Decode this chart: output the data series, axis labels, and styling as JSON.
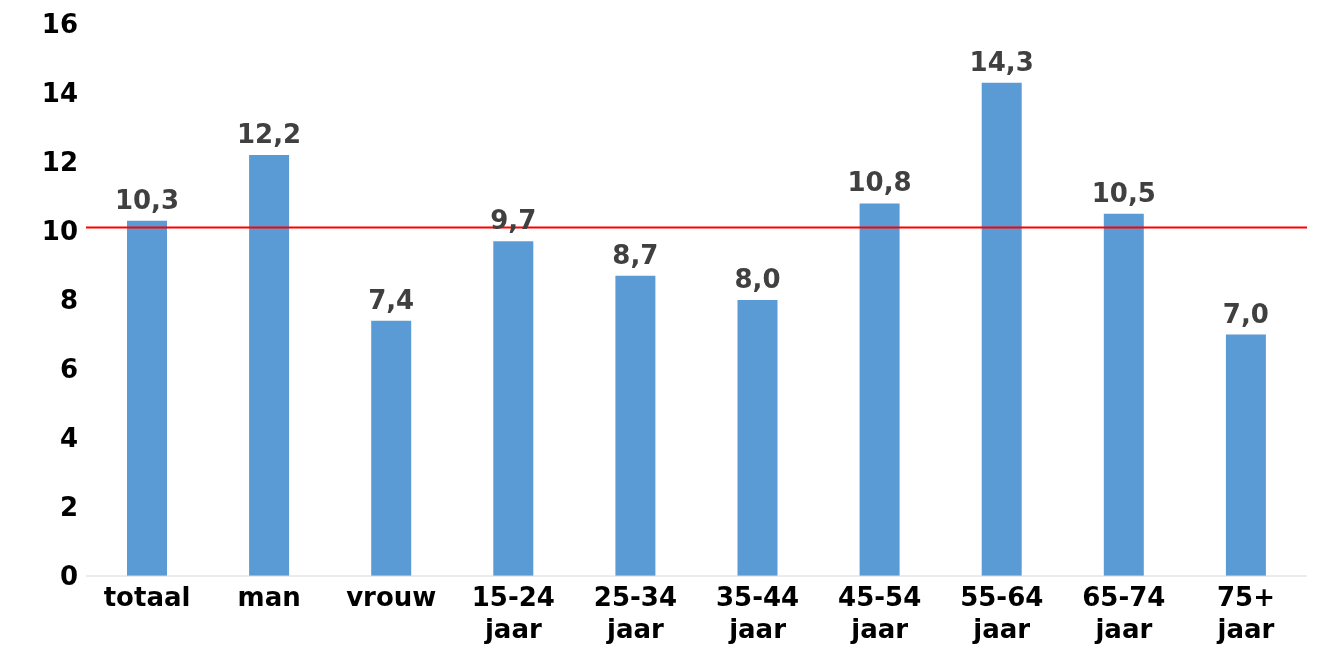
{
  "chart_data": {
    "type": "bar",
    "categories": [
      "totaal",
      "man",
      "vrouw",
      "15-24 jaar",
      "25-34 jaar",
      "35-44 jaar",
      "45-54 jaar",
      "55-64 jaar",
      "65-74 jaar",
      "75+ jaar"
    ],
    "values": [
      10.3,
      12.2,
      7.4,
      9.7,
      8.7,
      8.0,
      10.8,
      14.3,
      10.5,
      7.0
    ],
    "value_labels": [
      "10,3",
      "12,2",
      "7,4",
      "9,7",
      "8,7",
      "8,0",
      "10,8",
      "14,3",
      "10,5",
      "7,0"
    ],
    "color": "#5b9bd5",
    "ylim": [
      0,
      16
    ],
    "yticks": [
      0,
      2,
      4,
      6,
      8,
      10,
      12,
      14,
      16
    ],
    "ref_lines": [
      {
        "axis": "y",
        "value": 10.1,
        "color": "#ff0000"
      }
    ],
    "grid": false,
    "legend": false
  }
}
